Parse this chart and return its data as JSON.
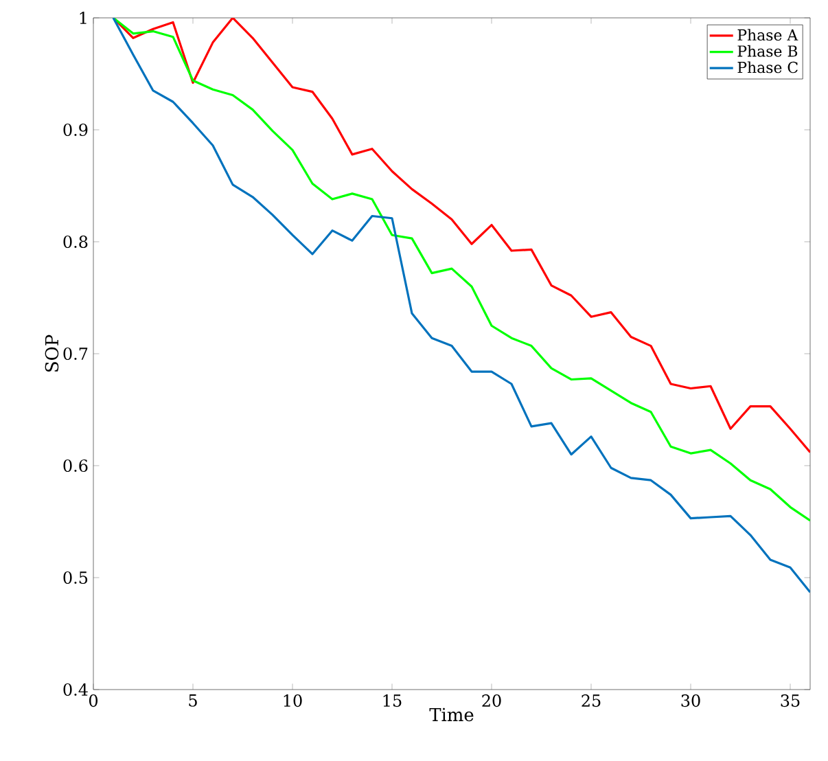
{
  "chart_data": {
    "type": "line",
    "xlabel": "Time",
    "ylabel": "SOP",
    "x": [
      1,
      2,
      3,
      4,
      5,
      6,
      7,
      8,
      9,
      10,
      11,
      12,
      13,
      14,
      15,
      16,
      17,
      18,
      19,
      20,
      21,
      22,
      23,
      24,
      25,
      26,
      27,
      28,
      29,
      30,
      31,
      32,
      33,
      34,
      35,
      36
    ],
    "series": [
      {
        "name": "Phase A",
        "color": "#ff0000",
        "values": [
          1.0,
          0.982,
          0.99,
          0.996,
          0.942,
          0.978,
          1.0,
          0.982,
          0.96,
          0.938,
          0.934,
          0.91,
          0.878,
          0.883,
          0.863,
          0.847,
          0.834,
          0.82,
          0.798,
          0.815,
          0.792,
          0.793,
          0.761,
          0.752,
          0.733,
          0.737,
          0.715,
          0.707,
          0.673,
          0.669,
          0.671,
          0.633,
          0.653,
          0.653,
          0.633,
          0.612
        ]
      },
      {
        "name": "Phase B",
        "color": "#00ff00",
        "values": [
          1.0,
          0.986,
          0.988,
          0.983,
          0.944,
          0.936,
          0.931,
          0.918,
          0.899,
          0.882,
          0.852,
          0.838,
          0.843,
          0.838,
          0.806,
          0.803,
          0.772,
          0.776,
          0.76,
          0.725,
          0.714,
          0.707,
          0.687,
          0.677,
          0.678,
          0.667,
          0.656,
          0.648,
          0.617,
          0.611,
          0.614,
          0.602,
          0.587,
          0.579,
          0.563,
          0.551
        ]
      },
      {
        "name": "Phase C",
        "color": "#0072bd",
        "values": [
          1.0,
          0.967,
          0.935,
          0.925,
          0.906,
          0.886,
          0.851,
          0.84,
          0.824,
          0.806,
          0.789,
          0.81,
          0.801,
          0.823,
          0.821,
          0.736,
          0.714,
          0.707,
          0.684,
          0.684,
          0.673,
          0.635,
          0.638,
          0.61,
          0.626,
          0.598,
          0.589,
          0.587,
          0.574,
          0.553,
          0.554,
          0.555,
          0.538,
          0.516,
          0.509,
          0.487
        ]
      }
    ],
    "xlim": [
      0,
      36
    ],
    "xticks": [
      0,
      5,
      10,
      15,
      20,
      25,
      30,
      35
    ],
    "ylim": [
      0.4,
      1
    ],
    "yticks": [
      0.4,
      0.5,
      0.6,
      0.7,
      0.8,
      0.9,
      1
    ],
    "grid": false,
    "legend": "top right",
    "marker": "none",
    "line_style": "solid"
  }
}
